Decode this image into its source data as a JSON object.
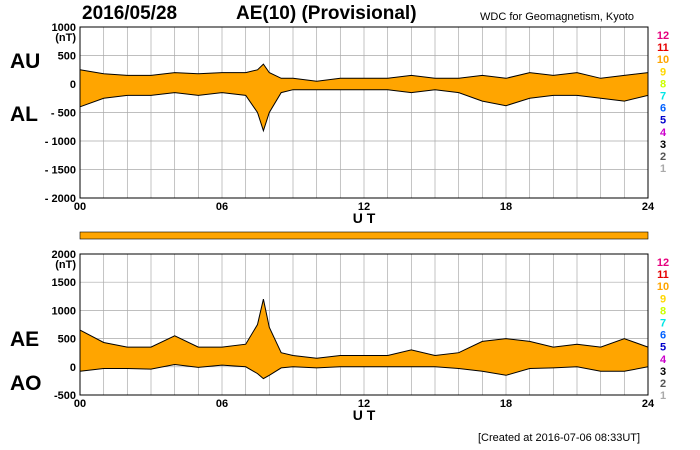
{
  "header": {
    "date": "2016/05/28",
    "title": "AE(10) (Provisional)",
    "institution": "WDC for Geomagnetism, Kyoto"
  },
  "footer": {
    "created": "[Created at 2016-07-06 08:33UT]"
  },
  "colors": {
    "fill": "#ffa500",
    "line": "#000000",
    "grid": "#aaaaaa"
  },
  "levels": {
    "labels": [
      "12",
      "11",
      "10",
      "9",
      "8",
      "7",
      "6",
      "5",
      "4",
      "3",
      "2",
      "1"
    ],
    "colors": [
      "#e6007e",
      "#e60000",
      "#ffa500",
      "#ffd700",
      "#ccff00",
      "#00e6e6",
      "#0060ff",
      "#0000cc",
      "#cc00cc",
      "#000000",
      "#555555",
      "#aaaaaa"
    ]
  },
  "chart_data": [
    {
      "type": "area",
      "series_labels": [
        "AU",
        "AL"
      ],
      "xlabel": "U T",
      "ylabel_unit": "(nT)",
      "xlim": [
        0,
        24
      ],
      "ylim": [
        -2000,
        1000
      ],
      "xticks": [
        "00",
        "06",
        "12",
        "18",
        "24"
      ],
      "yticks": [
        1000,
        500,
        0,
        -500,
        -1000,
        -1500,
        -2000
      ],
      "ytick_labels": [
        "1000",
        "500",
        "0",
        "- 500",
        "- 1000",
        "- 1500",
        "- 2000"
      ],
      "grid": true,
      "x": [
        0,
        1,
        2,
        3,
        4,
        5,
        6,
        7,
        7.5,
        7.75,
        8,
        8.5,
        9,
        10,
        11,
        12,
        13,
        14,
        15,
        16,
        17,
        18,
        19,
        20,
        21,
        22,
        23,
        24
      ],
      "series": [
        {
          "name": "AU",
          "values": [
            250,
            180,
            150,
            150,
            200,
            180,
            200,
            200,
            250,
            350,
            200,
            100,
            100,
            50,
            100,
            100,
            100,
            150,
            100,
            100,
            150,
            100,
            200,
            150,
            200,
            100,
            150,
            200
          ]
        },
        {
          "name": "AL",
          "values": [
            -400,
            -250,
            -200,
            -200,
            -150,
            -200,
            -150,
            -200,
            -500,
            -820,
            -500,
            -150,
            -100,
            -100,
            -100,
            -100,
            -100,
            -150,
            -100,
            -150,
            -300,
            -380,
            -250,
            -200,
            -200,
            -250,
            -300,
            -200
          ]
        }
      ]
    },
    {
      "type": "area",
      "series_labels": [
        "AE",
        "AO"
      ],
      "xlabel": "U T",
      "ylabel_unit": "(nT)",
      "xlim": [
        0,
        24
      ],
      "ylim": [
        -500,
        2000
      ],
      "xticks": [
        "00",
        "06",
        "12",
        "18",
        "24"
      ],
      "yticks": [
        2000,
        1500,
        1000,
        500,
        0,
        -500
      ],
      "ytick_labels": [
        "2000",
        "1500",
        "1000",
        "500",
        "0",
        "-500"
      ],
      "grid": true,
      "x": [
        0,
        1,
        2,
        3,
        4,
        5,
        6,
        7,
        7.5,
        7.75,
        8,
        8.5,
        9,
        10,
        11,
        12,
        13,
        14,
        15,
        16,
        17,
        18,
        19,
        20,
        21,
        22,
        23,
        24
      ],
      "series": [
        {
          "name": "AE",
          "values": [
            650,
            430,
            350,
            350,
            550,
            350,
            350,
            400,
            750,
            1200,
            700,
            250,
            200,
            150,
            200,
            200,
            200,
            300,
            200,
            250,
            450,
            500,
            450,
            350,
            400,
            350,
            500,
            350
          ]
        },
        {
          "name": "AO",
          "values": [
            -80,
            -30,
            -30,
            -40,
            40,
            -10,
            30,
            0,
            -120,
            -210,
            -150,
            -20,
            0,
            -20,
            0,
            0,
            0,
            0,
            0,
            -30,
            -80,
            -150,
            -30,
            -20,
            0,
            -80,
            -80,
            0
          ]
        }
      ]
    }
  ]
}
